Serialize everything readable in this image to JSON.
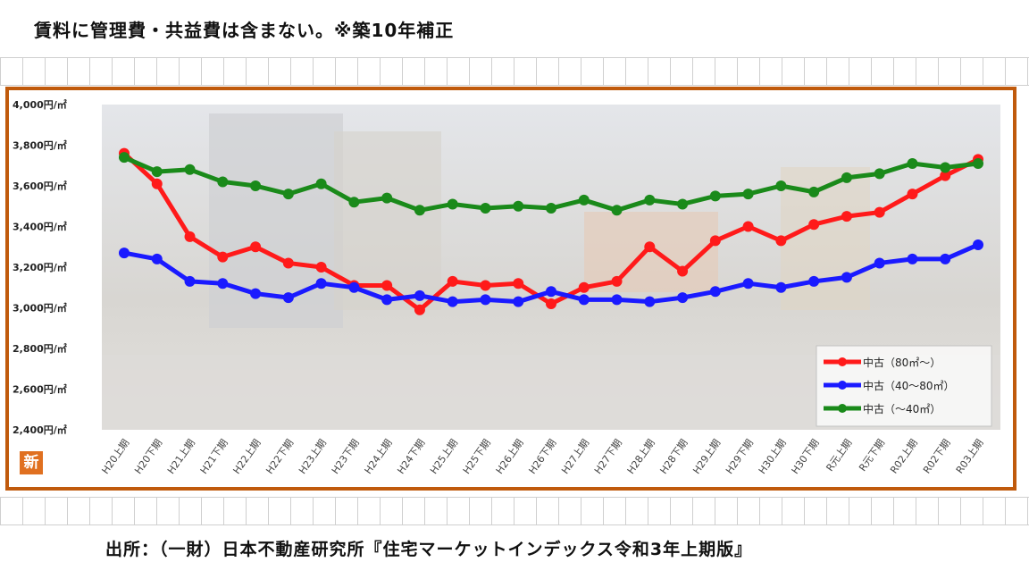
{
  "note": "賃料に管理費・共益費は含まない。※築10年補正",
  "source": "出所：（一財）日本不動産研究所『住宅マーケットインデックス令和3年上期版』",
  "logo_text": "新",
  "chart_data": {
    "type": "line",
    "categories": [
      "H20上期",
      "H20下期",
      "H21上期",
      "H21下期",
      "H22上期",
      "H22下期",
      "H23上期",
      "H23下期",
      "H24上期",
      "H24下期",
      "H25上期",
      "H25下期",
      "H26上期",
      "H26下期",
      "H27上期",
      "H27下期",
      "H28上期",
      "H28下期",
      "H29上期",
      "H29下期",
      "H30上期",
      "H30下期",
      "R元上期",
      "R元下期",
      "R02上期",
      "R02下期",
      "R03上期"
    ],
    "ylim": [
      2400,
      4000
    ],
    "yticks": [
      "2,400円/㎡",
      "2,600円/㎡",
      "2,800円/㎡",
      "3,000円/㎡",
      "3,200円/㎡",
      "3,400円/㎡",
      "3,600円/㎡",
      "3,800円/㎡",
      "4,000円/㎡"
    ],
    "legend_position": "bottom-right",
    "series": [
      {
        "name": "中古（80㎡～）",
        "color": "#ff1a1a",
        "values": [
          3760,
          3610,
          3350,
          3250,
          3300,
          3220,
          3200,
          3110,
          3110,
          2990,
          3130,
          3110,
          3120,
          3020,
          3100,
          3130,
          3300,
          3180,
          3330,
          3400,
          3330,
          3410,
          3450,
          3470,
          3560,
          3650,
          3730
        ]
      },
      {
        "name": "中古（40～80㎡）",
        "color": "#1a1aff",
        "values": [
          3270,
          3240,
          3130,
          3120,
          3070,
          3050,
          3120,
          3100,
          3040,
          3060,
          3030,
          3040,
          3030,
          3080,
          3040,
          3040,
          3030,
          3050,
          3080,
          3120,
          3100,
          3130,
          3150,
          3220,
          3240,
          3240,
          3310
        ]
      },
      {
        "name": "中古（～40㎡）",
        "color": "#1a8a1a",
        "values": [
          3740,
          3670,
          3680,
          3620,
          3600,
          3560,
          3610,
          3520,
          3540,
          3480,
          3510,
          3490,
          3500,
          3490,
          3530,
          3480,
          3530,
          3510,
          3550,
          3560,
          3600,
          3570,
          3640,
          3660,
          3710,
          3690,
          3710
        ]
      }
    ]
  }
}
